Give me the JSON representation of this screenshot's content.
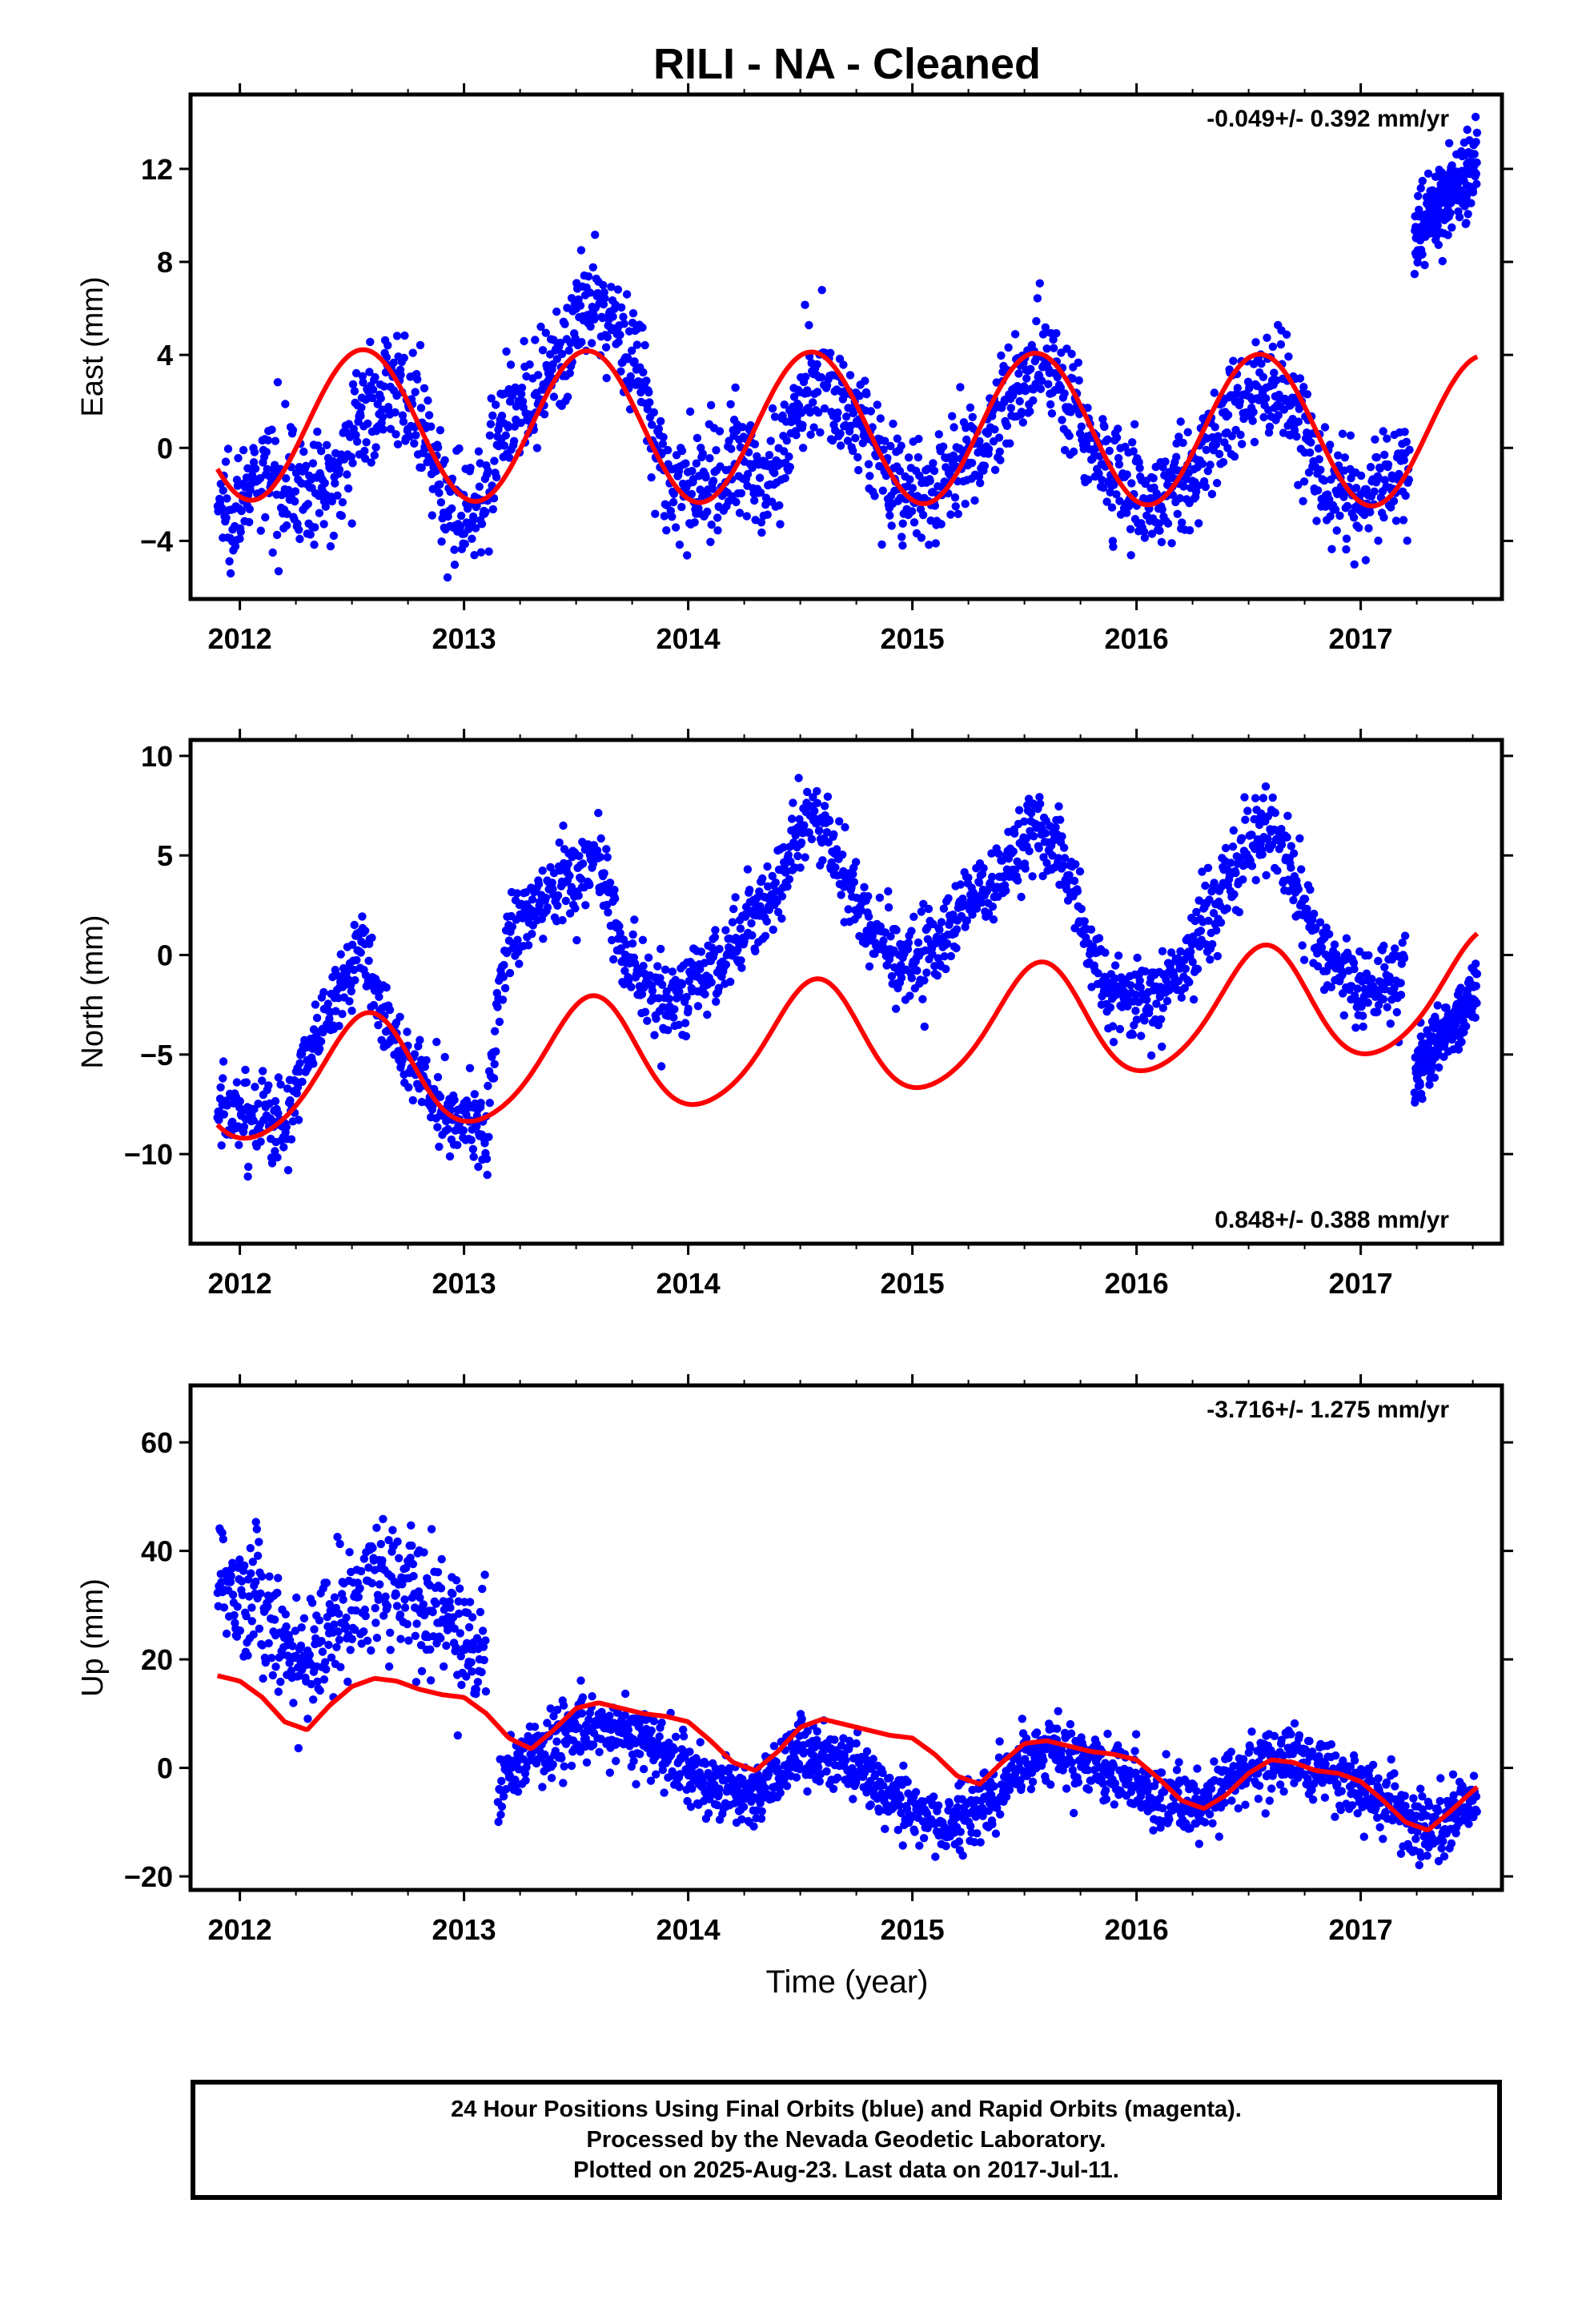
{
  "figure": {
    "title": "RILI  - NA - Cleaned",
    "xlabel": "Time (year)",
    "colors": {
      "points": "#0000ff",
      "model": "#ff0000",
      "frame": "#000000"
    }
  },
  "chart_data": [
    {
      "type": "scatter",
      "panel": "east",
      "ylabel": "East (mm)",
      "rate_text": "-0.049+/- 0.392 mm/yr",
      "rate_position": "top-right",
      "xlim": [
        2011.78,
        2017.63
      ],
      "ylim": [
        -6.5,
        15.2
      ],
      "xticks": [
        2012,
        2013,
        2014,
        2015,
        2016,
        2017
      ],
      "xtick_labels": [
        "2012",
        "2013",
        "2014",
        "2015",
        "2016",
        "2017"
      ],
      "yticks": [
        -4,
        0,
        4,
        8,
        12
      ],
      "ytick_labels": [
        "−4",
        "0",
        "4",
        "8",
        "12"
      ],
      "x_range": [
        2011.9,
        2017.52
      ],
      "scatter_segments": [
        {
          "x": [
            2011.9,
            2012.0,
            2012.1,
            2012.2,
            2012.3,
            2012.4,
            2012.5,
            2012.6,
            2012.7,
            2012.8,
            2012.9,
            2013.0,
            2013.1,
            2013.2,
            2013.3,
            2013.4,
            2013.5,
            2013.6,
            2013.7,
            2013.8,
            2013.9,
            2014.0,
            2014.1,
            2014.2,
            2014.3,
            2014.4,
            2014.5,
            2014.6,
            2014.7,
            2014.8,
            2014.9,
            2015.0,
            2015.1,
            2015.2,
            2015.3,
            2015.4,
            2015.5,
            2015.6,
            2015.7,
            2015.8,
            2015.9,
            2016.0,
            2016.1,
            2016.2,
            2016.3,
            2016.4,
            2016.5,
            2016.6,
            2016.7,
            2016.8,
            2016.9,
            2017.0,
            2017.1,
            2017.22
          ],
          "y": [
            -2.5,
            -2.3,
            -1.4,
            -1.0,
            -2.0,
            -1.8,
            0.8,
            2.0,
            3.0,
            1.0,
            -2.0,
            -3.0,
            -1.5,
            2.0,
            1.5,
            3.0,
            5.5,
            6.0,
            5.0,
            3.0,
            -1.5,
            -2.0,
            -1.5,
            -0.5,
            -1.2,
            -1.0,
            2.5,
            3.0,
            2.0,
            0.5,
            -1.0,
            -2.5,
            -1.8,
            -1.0,
            -0.2,
            1.5,
            3.5,
            4.0,
            2.0,
            0.0,
            -1.0,
            -2.0,
            -2.5,
            -1.0,
            -0.5,
            1.0,
            2.5,
            3.0,
            2.0,
            -1.0,
            -2.0,
            -2.5,
            -1.5,
            -1.0
          ],
          "spread": 1.5,
          "count": 1900
        },
        {
          "x": [
            2017.24,
            2017.35,
            2017.45,
            2017.52
          ],
          "y": [
            9.0,
            10.5,
            11.5,
            12.5
          ],
          "spread": 1.1,
          "count": 220
        }
      ],
      "model": {
        "offset": 1.0,
        "trend": -0.049,
        "annual_amplitude": 3.25,
        "annual_peak": 0.55,
        "semiannual_amplitude": 0.0,
        "semiannual_peak": 0.0,
        "ref_epoch": 2012.0
      }
    },
    {
      "type": "scatter",
      "panel": "north",
      "ylabel": "North (mm)",
      "rate_text": "0.848+/- 0.388 mm/yr",
      "rate_position": "bottom-right",
      "xlim": [
        2011.78,
        2017.63
      ],
      "ylim": [
        -14.5,
        10.8
      ],
      "xticks": [
        2012,
        2013,
        2014,
        2015,
        2016,
        2017
      ],
      "xtick_labels": [
        "2012",
        "2013",
        "2014",
        "2015",
        "2016",
        "2017"
      ],
      "yticks": [
        -10,
        -5,
        0,
        5,
        10
      ],
      "ytick_labels": [
        "−10",
        "−5",
        "0",
        "5",
        "10"
      ],
      "x_range": [
        2011.9,
        2017.52
      ],
      "scatter_segments": [
        {
          "x": [
            2011.9,
            2012.0,
            2012.1,
            2012.2,
            2012.3,
            2012.4,
            2012.5,
            2012.55,
            2012.6,
            2012.7,
            2012.8,
            2012.9,
            2013.0,
            2013.1,
            2013.15,
            2013.2,
            2013.3,
            2013.4,
            2013.5,
            2013.6,
            2013.7,
            2013.8,
            2013.9,
            2014.0,
            2014.1,
            2014.2,
            2014.3,
            2014.4,
            2014.5,
            2014.6,
            2014.7,
            2014.8,
            2014.9,
            2015.0,
            2015.1,
            2015.2,
            2015.3,
            2015.4,
            2015.5,
            2015.6,
            2015.7,
            2015.8,
            2015.9,
            2016.0,
            2016.1,
            2016.2,
            2016.3,
            2016.4,
            2016.5,
            2016.6,
            2016.7,
            2016.8,
            2016.9,
            2017.0,
            2017.1,
            2017.2
          ],
          "y": [
            -8.0,
            -8.0,
            -8.0,
            -8.5,
            -5.0,
            -3.0,
            -0.5,
            0.5,
            -2.0,
            -4.5,
            -6.0,
            -7.5,
            -8.0,
            -9.0,
            -3.0,
            1.0,
            2.0,
            3.5,
            4.0,
            5.0,
            0.0,
            -1.5,
            -2.5,
            -1.5,
            -1.0,
            0.5,
            2.0,
            3.5,
            6.5,
            6.5,
            4.0,
            2.0,
            0.0,
            -1.0,
            0.5,
            2.0,
            3.0,
            4.0,
            6.0,
            6.0,
            4.0,
            0.0,
            -2.0,
            -2.0,
            -2.0,
            -1.0,
            1.5,
            3.5,
            5.5,
            6.5,
            4.0,
            1.0,
            -1.0,
            -1.5,
            -1.5,
            -1.0
          ],
          "spread": 1.3,
          "count": 1850
        },
        {
          "x": [
            2017.24,
            2017.3,
            2017.4,
            2017.52
          ],
          "y": [
            -6.5,
            -5.0,
            -3.5,
            -1.5
          ],
          "spread": 0.9,
          "count": 210
        }
      ],
      "model": {
        "offset": -6.6,
        "trend": 0.848,
        "annual_amplitude": 2.9,
        "annual_peak": 0.56,
        "semiannual_amplitude": 0.35,
        "semiannual_peak": 0.1,
        "ref_epoch": 2012.0
      }
    },
    {
      "type": "scatter",
      "panel": "up",
      "ylabel": "Up (mm)",
      "rate_text": "-3.716+/- 1.275 mm/yr",
      "rate_position": "top-right",
      "xlim": [
        2011.78,
        2017.63
      ],
      "ylim": [
        -22.5,
        70.5
      ],
      "xticks": [
        2012,
        2013,
        2014,
        2015,
        2016,
        2017
      ],
      "xtick_labels": [
        "2012",
        "2013",
        "2014",
        "2015",
        "2016",
        "2017"
      ],
      "yticks": [
        -20,
        0,
        20,
        40,
        60
      ],
      "ytick_labels": [
        "−20",
        "0",
        "20",
        "40",
        "60"
      ],
      "x_range": [
        2011.9,
        2017.52
      ],
      "scatter_segments": [
        {
          "x": [
            2011.9,
            2012.0,
            2012.1,
            2012.2,
            2012.3,
            2012.4,
            2012.5,
            2012.6,
            2012.7,
            2012.8,
            2012.9,
            2013.0,
            2013.1
          ],
          "y": [
            36.0,
            33.0,
            30.0,
            22.0,
            20.0,
            25.0,
            30.0,
            33.0,
            34.0,
            32.0,
            28.0,
            25.0,
            22.0
          ],
          "spread": 7.5,
          "count": 420
        },
        {
          "x": [
            2013.15,
            2013.3,
            2013.5,
            2013.7,
            2013.9,
            2014.1,
            2014.3,
            2014.5,
            2014.7,
            2014.9,
            2015.1,
            2015.3,
            2015.5,
            2015.7,
            2015.9,
            2016.1,
            2016.3,
            2016.5,
            2016.7,
            2016.9,
            2017.1,
            2017.3,
            2017.52
          ],
          "y": [
            -3.0,
            3.0,
            7.0,
            7.0,
            3.0,
            -3.0,
            -6.0,
            3.0,
            1.0,
            -4.0,
            -10.0,
            -8.0,
            2.0,
            3.0,
            -1.0,
            -6.0,
            -7.0,
            0.0,
            2.0,
            -2.0,
            -6.0,
            -12.0,
            -5.0
          ],
          "spread": 3.8,
          "count": 1650
        }
      ],
      "model": {
        "x": [
          2011.9,
          2012.0,
          2012.1,
          2012.2,
          2012.3,
          2012.4,
          2012.5,
          2012.6,
          2012.7,
          2012.8,
          2012.9,
          2013.0,
          2013.1,
          2013.2,
          2013.3,
          2013.4,
          2013.5,
          2013.6,
          2013.7,
          2013.8,
          2013.9,
          2014.0,
          2014.1,
          2014.2,
          2014.3,
          2014.4,
          2014.5,
          2014.6,
          2014.7,
          2014.8,
          2014.9,
          2015.0,
          2015.1,
          2015.2,
          2015.3,
          2015.4,
          2015.5,
          2015.6,
          2015.7,
          2015.8,
          2015.9,
          2016.0,
          2016.1,
          2016.2,
          2016.3,
          2016.4,
          2016.5,
          2016.6,
          2016.7,
          2016.8,
          2016.9,
          2017.0,
          2017.1,
          2017.2,
          2017.3,
          2017.4,
          2017.52
        ],
        "y": [
          17.0,
          16.0,
          13.0,
          8.5,
          7.0,
          11.5,
          15.0,
          16.5,
          16.0,
          14.5,
          13.5,
          13.0,
          10.0,
          5.5,
          3.5,
          7.0,
          11.0,
          12.0,
          11.0,
          10.0,
          9.5,
          8.5,
          5.0,
          1.0,
          -0.5,
          3.0,
          7.5,
          9.0,
          8.0,
          7.0,
          6.0,
          5.5,
          2.5,
          -1.5,
          -3.0,
          1.0,
          4.5,
          5.0,
          4.0,
          3.0,
          2.5,
          1.5,
          -2.0,
          -6.0,
          -7.5,
          -5.0,
          -1.0,
          1.5,
          1.0,
          -0.5,
          -1.0,
          -2.5,
          -6.0,
          -10.0,
          -11.5,
          -8.0,
          -3.5
        ]
      }
    }
  ],
  "footer": {
    "line1": "24 Hour Positions Using Final Orbits (blue) and Rapid Orbits (magenta).",
    "line2": "Processed by the Nevada Geodetic Laboratory.",
    "line3": "Plotted on 2025-Aug-23. Last data on 2017-Jul-11."
  }
}
